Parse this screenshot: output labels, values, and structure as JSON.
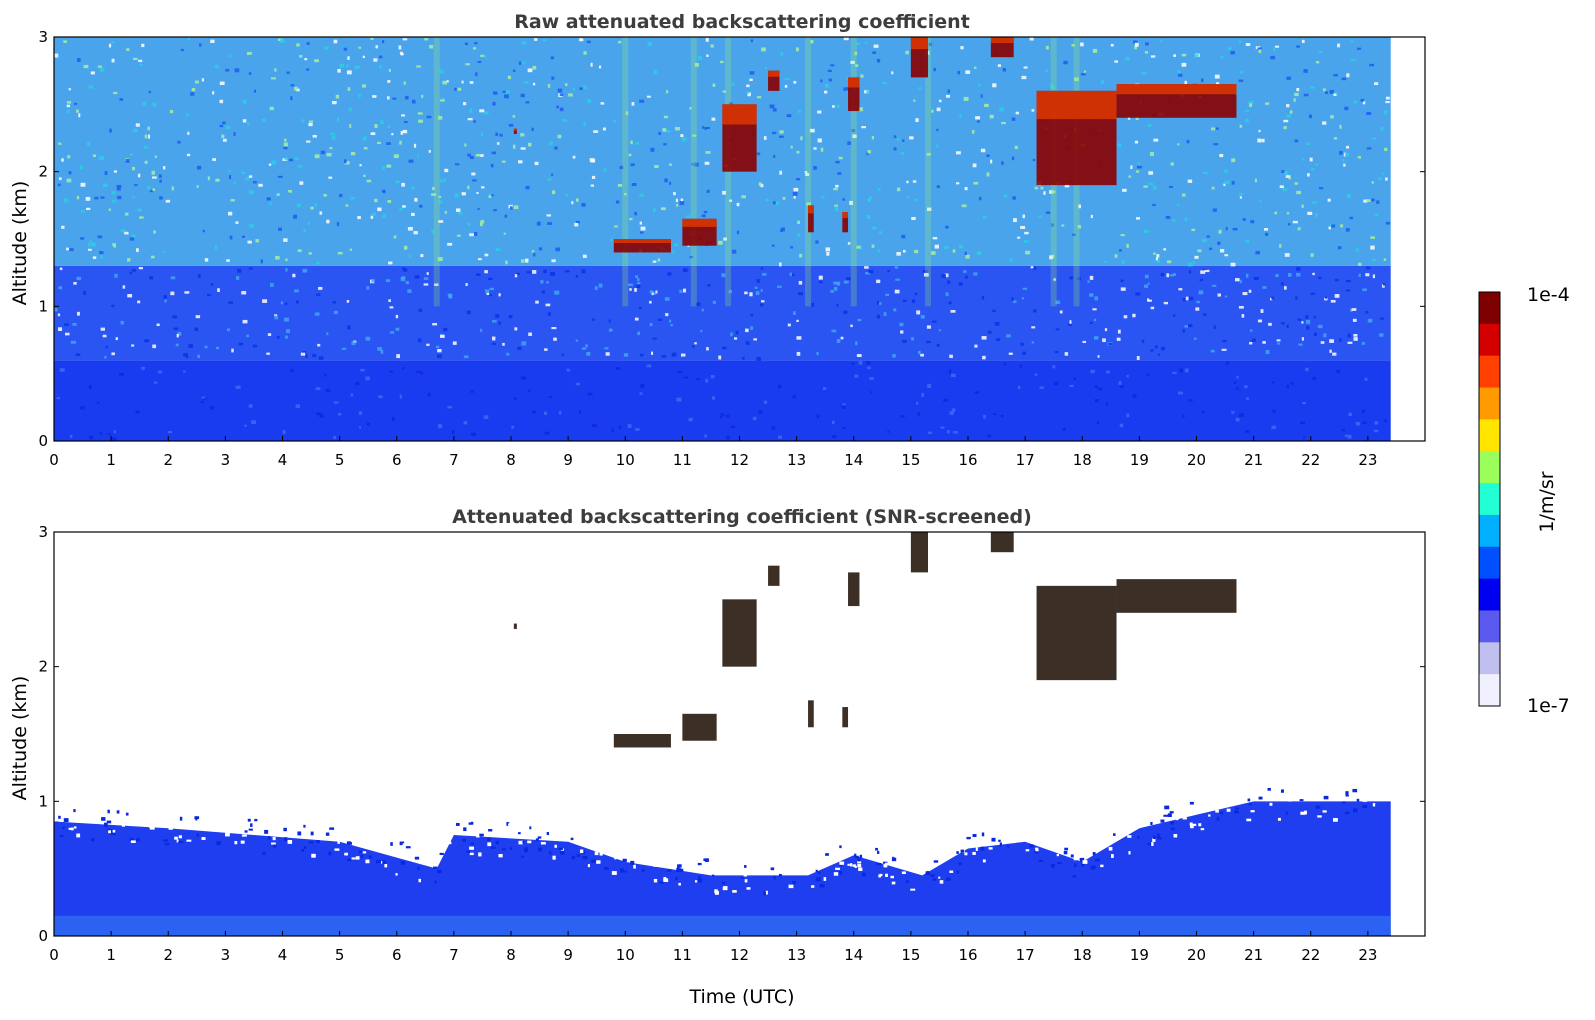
{
  "chart_data": [
    {
      "type": "heatmap",
      "title": "Raw attenuated backscattering coefficient",
      "xlabel": "",
      "ylabel": "Altitude (km)",
      "xlim": [
        0,
        24
      ],
      "ylim": [
        0,
        3
      ],
      "x_ticks": [
        "0",
        "1",
        "2",
        "3",
        "4",
        "5",
        "6",
        "7",
        "8",
        "9",
        "10",
        "11",
        "12",
        "13",
        "14",
        "15",
        "16",
        "17",
        "18",
        "19",
        "20",
        "21",
        "22",
        "23"
      ],
      "y_ticks": [
        "0",
        "1",
        "2",
        "3"
      ],
      "data_time_range": [
        0,
        23.4
      ],
      "background_noise_levels": [
        {
          "altitude": [
            0,
            0.6
          ],
          "level": "high"
        },
        {
          "altitude": [
            0.6,
            1.3
          ],
          "level": "medium"
        },
        {
          "altitude": [
            1.3,
            3
          ],
          "level": "noisy"
        }
      ],
      "cloud_features": [
        {
          "time": [
            9.8,
            10.8
          ],
          "altitude": [
            1.4,
            1.5
          ]
        },
        {
          "time": [
            11.0,
            11.6
          ],
          "altitude": [
            1.45,
            1.65
          ]
        },
        {
          "time": [
            11.7,
            12.3
          ],
          "altitude": [
            2.0,
            2.5
          ]
        },
        {
          "time": [
            12.5,
            12.7
          ],
          "altitude": [
            2.6,
            2.75
          ]
        },
        {
          "time": [
            13.2,
            13.3
          ],
          "altitude": [
            1.55,
            1.75
          ]
        },
        {
          "time": [
            13.8,
            13.9
          ],
          "altitude": [
            1.55,
            1.7
          ]
        },
        {
          "time": [
            13.9,
            14.1
          ],
          "altitude": [
            2.45,
            2.7
          ]
        },
        {
          "time": [
            15.0,
            15.3
          ],
          "altitude": [
            2.7,
            3.0
          ]
        },
        {
          "time": [
            16.4,
            16.8
          ],
          "altitude": [
            2.85,
            3.0
          ]
        },
        {
          "time": [
            17.2,
            18.6
          ],
          "altitude": [
            1.9,
            2.6
          ]
        },
        {
          "time": [
            18.6,
            20.7
          ],
          "altitude": [
            2.4,
            2.65
          ]
        },
        {
          "time": [
            8.05,
            8.1
          ],
          "altitude": [
            2.28,
            2.32
          ]
        }
      ]
    },
    {
      "type": "heatmap",
      "title": "Attenuated backscattering coefficient (SNR-screened)",
      "xlabel": "Time (UTC)",
      "ylabel": "Altitude (km)",
      "xlim": [
        0,
        24
      ],
      "ylim": [
        0,
        3
      ],
      "x_ticks": [
        "0",
        "1",
        "2",
        "3",
        "4",
        "5",
        "6",
        "7",
        "8",
        "9",
        "10",
        "11",
        "12",
        "13",
        "14",
        "15",
        "16",
        "17",
        "18",
        "19",
        "20",
        "21",
        "22",
        "23"
      ],
      "y_ticks": [
        "0",
        "1",
        "2",
        "3"
      ],
      "data_time_range": [
        0,
        23.4
      ],
      "boundary_layer_top": [
        {
          "time": 0,
          "altitude": 0.85
        },
        {
          "time": 2,
          "altitude": 0.8
        },
        {
          "time": 5,
          "altitude": 0.7
        },
        {
          "time": 6.7,
          "altitude": 0.5
        },
        {
          "time": 7,
          "altitude": 0.75
        },
        {
          "time": 9,
          "altitude": 0.7
        },
        {
          "time": 10,
          "altitude": 0.55
        },
        {
          "time": 11.5,
          "altitude": 0.45
        },
        {
          "time": 12,
          "altitude": 0.45
        },
        {
          "time": 13.2,
          "altitude": 0.45
        },
        {
          "time": 14,
          "altitude": 0.6
        },
        {
          "time": 15.2,
          "altitude": 0.45
        },
        {
          "time": 16,
          "altitude": 0.65
        },
        {
          "time": 17,
          "altitude": 0.7
        },
        {
          "time": 18,
          "altitude": 0.55
        },
        {
          "time": 19,
          "altitude": 0.8
        },
        {
          "time": 20,
          "altitude": 0.9
        },
        {
          "time": 21,
          "altitude": 1.0
        },
        {
          "time": 23.4,
          "altitude": 1.0
        }
      ]
    }
  ],
  "colorbar": {
    "label": "1/m/sr",
    "max_label": "1e-4",
    "min_label": "1e-7",
    "colors": [
      "#7f0000",
      "#d40000",
      "#ff4000",
      "#ff9a00",
      "#ffe500",
      "#9bff5b",
      "#22ffd4",
      "#00b0ff",
      "#0050ff",
      "#0000f0",
      "#5a5af0",
      "#c0c0f0",
      "#f0f0ff"
    ]
  }
}
